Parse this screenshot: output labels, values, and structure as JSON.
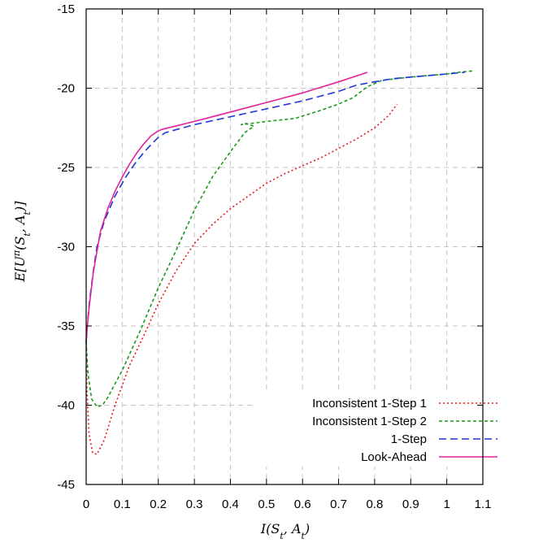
{
  "chart_data": {
    "type": "line",
    "title": "",
    "xlabel": "I(S_t, A_t)",
    "ylabel": "E[U^π(S_t, A_t)]",
    "xlim": [
      0,
      1.1
    ],
    "ylim": [
      -45,
      -15
    ],
    "xticks": [
      "0",
      "0.1",
      "0.2",
      "0.3",
      "0.4",
      "0.5",
      "0.6",
      "0.7",
      "0.8",
      "0.9",
      "1",
      "1.1"
    ],
    "yticks": [
      "-45",
      "-40",
      "-35",
      "-30",
      "-25",
      "-20",
      "-15"
    ],
    "grid": true,
    "legend_position": "bottom-right",
    "series": [
      {
        "name": "Inconsistent 1-Step 1",
        "color": "#e41a1c",
        "dash": "dotted",
        "x": [
          0.0,
          0.002,
          0.008,
          0.018,
          0.03,
          0.05,
          0.08,
          0.12,
          0.16,
          0.2,
          0.25,
          0.3,
          0.35,
          0.4,
          0.45,
          0.5,
          0.55,
          0.6,
          0.65,
          0.7,
          0.75,
          0.8,
          0.84,
          0.862
        ],
        "y": [
          -36.0,
          -39.0,
          -41.8,
          -43.0,
          -43.1,
          -42.2,
          -40.0,
          -37.5,
          -35.6,
          -33.6,
          -31.5,
          -29.8,
          -28.6,
          -27.6,
          -26.8,
          -26.0,
          -25.4,
          -24.9,
          -24.4,
          -23.8,
          -23.2,
          -22.5,
          -21.7,
          -21.0
        ]
      },
      {
        "name": "Inconsistent 1-Step 2",
        "color": "#1a9a1a",
        "dash": "dashed",
        "x": [
          0.0,
          0.005,
          0.015,
          0.03,
          0.045,
          0.06,
          0.1,
          0.15,
          0.2,
          0.25,
          0.3,
          0.35,
          0.4,
          0.44,
          0.465,
          0.44,
          0.43,
          0.5,
          0.58,
          0.65,
          0.7,
          0.74,
          0.78,
          0.82,
          0.9,
          0.95,
          1.0,
          1.03,
          1.075
        ],
        "y": [
          -36.0,
          -38.0,
          -39.6,
          -40.1,
          -40.0,
          -39.5,
          -37.8,
          -35.3,
          -32.6,
          -30.2,
          -27.7,
          -25.6,
          -24.0,
          -22.8,
          -22.4,
          -22.2,
          -22.3,
          -22.1,
          -21.9,
          -21.4,
          -21.0,
          -20.6,
          -19.9,
          -19.5,
          -19.3,
          -19.2,
          -19.1,
          -19.0,
          -18.9
        ]
      },
      {
        "name": "1-Step",
        "color": "#1f37d6",
        "dash": "longdash",
        "x": [
          0.0,
          0.005,
          0.01,
          0.02,
          0.03,
          0.05,
          0.08,
          0.11,
          0.14,
          0.17,
          0.2,
          0.22,
          0.3,
          0.4,
          0.5,
          0.6,
          0.7,
          0.75,
          0.8,
          0.85,
          0.9,
          0.95,
          1.0,
          1.05
        ],
        "y": [
          -36.0,
          -34.5,
          -33.3,
          -31.5,
          -30.0,
          -28.4,
          -26.8,
          -25.6,
          -24.6,
          -23.8,
          -23.1,
          -22.8,
          -22.3,
          -21.8,
          -21.3,
          -20.8,
          -20.2,
          -19.8,
          -19.6,
          -19.4,
          -19.3,
          -19.2,
          -19.1,
          -19.0
        ]
      },
      {
        "name": "Look-Ahead",
        "color": "#e0249a",
        "dash": "solid",
        "x": [
          0.0,
          0.005,
          0.01,
          0.02,
          0.04,
          0.06,
          0.08,
          0.1,
          0.12,
          0.14,
          0.16,
          0.18,
          0.2,
          0.21,
          0.3,
          0.4,
          0.5,
          0.6,
          0.7,
          0.78
        ],
        "y": [
          -36.0,
          -34.6,
          -33.5,
          -31.6,
          -29.0,
          -27.6,
          -26.5,
          -25.6,
          -24.8,
          -24.1,
          -23.5,
          -23.0,
          -22.7,
          -22.6,
          -22.1,
          -21.5,
          -20.9,
          -20.3,
          -19.6,
          -19.0
        ]
      }
    ]
  }
}
